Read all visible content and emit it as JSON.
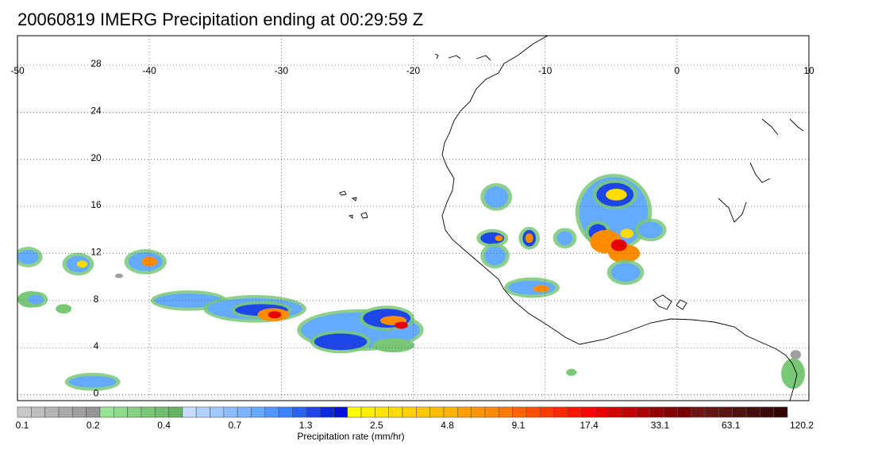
{
  "title": "20060819 IMERG Precipitation ending at 00:29:59 Z",
  "map": {
    "lon_range": [
      -50,
      10
    ],
    "lat_range": [
      -0.5,
      30.5
    ],
    "lon_ticks": [
      -50,
      -40,
      -30,
      -20,
      -10,
      0,
      10
    ],
    "lon_tick_labels": [
      "-50",
      "-40",
      "-30",
      "-20",
      "-10",
      "0",
      "10"
    ],
    "lat_ticks": [
      28,
      24,
      20,
      16,
      12,
      8,
      4,
      0
    ],
    "lat_tick_labels": [
      "28",
      "24",
      "20",
      "16",
      "12",
      "8",
      "4",
      "0"
    ],
    "grid": true,
    "coastline_color": "#000000"
  },
  "colorbar": {
    "title": "Precipitation rate (mm/hr)",
    "tick_labels": [
      "0.1",
      "0.2",
      "0.4",
      "0.7",
      "1.3",
      "2.5",
      "4.8",
      "9.1",
      "17.4",
      "33.1",
      "63.1",
      "120.2"
    ],
    "colors": [
      "#c8c8c8",
      "#bebebe",
      "#b4b4b4",
      "#aaaaaa",
      "#a0a0a0",
      "#969696",
      "#96e696",
      "#8cdc8c",
      "#82d282",
      "#78c878",
      "#6ebe6e",
      "#64b464",
      "#c8dcff",
      "#b4d2ff",
      "#a0c8ff",
      "#8cbeff",
      "#78b4ff",
      "#64aaff",
      "#5096ff",
      "#3c82ff",
      "#2864f0",
      "#1e46e6",
      "#0a28dc",
      "#0014d2",
      "#ffff00",
      "#fff000",
      "#ffe600",
      "#ffdc00",
      "#ffd200",
      "#ffc800",
      "#ffbe00",
      "#ffb400",
      "#ffa000",
      "#ff9600",
      "#ff8c00",
      "#ff7800",
      "#ff6400",
      "#ff5000",
      "#ff3c00",
      "#ff2800",
      "#ff1400",
      "#ff0000",
      "#e60000",
      "#d20000",
      "#be0000",
      "#aa0000",
      "#960000",
      "#820000",
      "#780000",
      "#6e1414",
      "#641414",
      "#5a1414",
      "#501010",
      "#460c0c",
      "#3c0808",
      "#320404"
    ]
  },
  "precip_cells": [
    {
      "lon": -49,
      "lat": 8.1,
      "rx": 1.0,
      "ry": 0.7,
      "level": "green"
    },
    {
      "lon": -48.6,
      "lat": 8.1,
      "rx": 0.6,
      "ry": 0.4,
      "level": "blue"
    },
    {
      "lon": -49.2,
      "lat": 11.7,
      "rx": 0.8,
      "ry": 0.6,
      "level": "blue"
    },
    {
      "lon": -45.4,
      "lat": 11.1,
      "rx": 0.9,
      "ry": 0.7,
      "level": "blue"
    },
    {
      "lon": -45.1,
      "lat": 11.1,
      "rx": 0.4,
      "ry": 0.3,
      "level": "yellow"
    },
    {
      "lon": -40.3,
      "lat": 11.3,
      "rx": 1.3,
      "ry": 0.8,
      "level": "blue"
    },
    {
      "lon": -40.0,
      "lat": 11.3,
      "rx": 0.6,
      "ry": 0.4,
      "level": "orange"
    },
    {
      "lon": -44.3,
      "lat": 1.1,
      "rx": 1.8,
      "ry": 0.5,
      "level": "blue"
    },
    {
      "lon": -46.5,
      "lat": 7.3,
      "rx": 0.6,
      "ry": 0.4,
      "level": "green"
    },
    {
      "lon": -37.0,
      "lat": 8.0,
      "rx": 2.6,
      "ry": 0.6,
      "level": "blue"
    },
    {
      "lon": -32.0,
      "lat": 7.3,
      "rx": 3.6,
      "ry": 0.9,
      "level": "blue"
    },
    {
      "lon": -31.5,
      "lat": 7.2,
      "rx": 2.0,
      "ry": 0.5,
      "level": "darkblue"
    },
    {
      "lon": -30.6,
      "lat": 6.8,
      "rx": 1.2,
      "ry": 0.55,
      "level": "orange"
    },
    {
      "lon": -30.5,
      "lat": 6.8,
      "rx": 0.5,
      "ry": 0.3,
      "level": "red"
    },
    {
      "lon": -24.0,
      "lat": 5.5,
      "rx": 4.5,
      "ry": 1.5,
      "level": "blue"
    },
    {
      "lon": -25.5,
      "lat": 4.5,
      "rx": 2.0,
      "ry": 0.7,
      "level": "darkblue"
    },
    {
      "lon": -22.0,
      "lat": 6.5,
      "rx": 1.8,
      "ry": 0.8,
      "level": "darkblue"
    },
    {
      "lon": -21.5,
      "lat": 6.3,
      "rx": 1.0,
      "ry": 0.4,
      "level": "orange"
    },
    {
      "lon": -20.9,
      "lat": 5.9,
      "rx": 0.5,
      "ry": 0.3,
      "level": "red"
    },
    {
      "lon": -21.5,
      "lat": 4.2,
      "rx": 1.6,
      "ry": 0.6,
      "level": "green"
    },
    {
      "lon": -13.7,
      "lat": 16.8,
      "rx": 0.9,
      "ry": 0.9,
      "level": "blue"
    },
    {
      "lon": -14.0,
      "lat": 13.3,
      "rx": 0.9,
      "ry": 0.5,
      "level": "darkblue"
    },
    {
      "lon": -13.5,
      "lat": 13.3,
      "rx": 0.3,
      "ry": 0.25,
      "level": "orange"
    },
    {
      "lon": -13.8,
      "lat": 11.8,
      "rx": 0.8,
      "ry": 0.8,
      "level": "blue"
    },
    {
      "lon": -11.2,
      "lat": 13.3,
      "rx": 0.5,
      "ry": 0.7,
      "level": "darkblue"
    },
    {
      "lon": -11.2,
      "lat": 13.3,
      "rx": 0.3,
      "ry": 0.4,
      "level": "orange"
    },
    {
      "lon": -11.0,
      "lat": 9.1,
      "rx": 1.8,
      "ry": 0.6,
      "level": "blue"
    },
    {
      "lon": -10.3,
      "lat": 9.0,
      "rx": 0.6,
      "ry": 0.3,
      "level": "orange"
    },
    {
      "lon": -8.5,
      "lat": 13.3,
      "rx": 0.6,
      "ry": 0.6,
      "level": "blue"
    },
    {
      "lon": -4.8,
      "lat": 15.5,
      "rx": 2.6,
      "ry": 3.0,
      "level": "blue"
    },
    {
      "lon": -4.7,
      "lat": 17.0,
      "rx": 1.4,
      "ry": 1.0,
      "level": "darkblue"
    },
    {
      "lon": -4.6,
      "lat": 17.0,
      "rx": 0.8,
      "ry": 0.5,
      "level": "yellow"
    },
    {
      "lon": -6.0,
      "lat": 13.8,
      "rx": 0.7,
      "ry": 0.7,
      "level": "darkblue"
    },
    {
      "lon": -5.4,
      "lat": 13.0,
      "rx": 1.2,
      "ry": 1.0,
      "level": "orange"
    },
    {
      "lon": -4.0,
      "lat": 12.0,
      "rx": 1.2,
      "ry": 0.8,
      "level": "orange"
    },
    {
      "lon": -4.4,
      "lat": 12.7,
      "rx": 0.6,
      "ry": 0.5,
      "level": "red"
    },
    {
      "lon": -3.9,
      "lat": 10.4,
      "rx": 1.1,
      "ry": 0.8,
      "level": "blue"
    },
    {
      "lon": -3.8,
      "lat": 13.7,
      "rx": 0.5,
      "ry": 0.4,
      "level": "yellow"
    },
    {
      "lon": -2.0,
      "lat": 14.0,
      "rx": 0.9,
      "ry": 0.7,
      "level": "blue"
    },
    {
      "lon": -8.0,
      "lat": 1.9,
      "rx": 0.4,
      "ry": 0.3,
      "level": "green"
    },
    {
      "lon": 8.8,
      "lat": 1.8,
      "rx": 0.9,
      "ry": 1.3,
      "level": "green"
    },
    {
      "lon": 9.0,
      "lat": 3.4,
      "rx": 0.4,
      "ry": 0.4,
      "level": "grey"
    },
    {
      "lon": -42.3,
      "lat": 10.1,
      "rx": 0.3,
      "ry": 0.2,
      "level": "grey"
    }
  ]
}
